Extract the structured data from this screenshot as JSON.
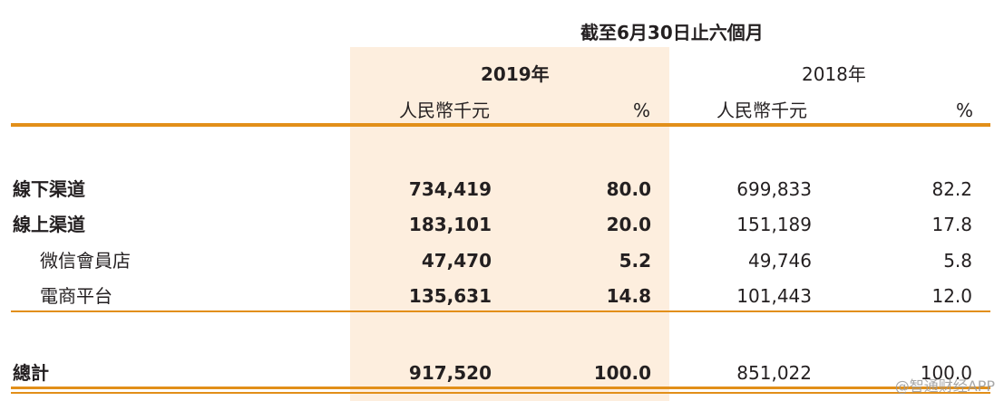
{
  "header": {
    "period": "截至6月30日止六個月",
    "year_2019": "2019年",
    "year_2018": "2018年",
    "unit": "人民幣千元",
    "pct": "%"
  },
  "rows": [
    {
      "label": "線下渠道",
      "v2019": "734,419",
      "p2019": "80.0",
      "v2018": "699,833",
      "p2018": "82.2"
    },
    {
      "label": "線上渠道",
      "v2019": "183,101",
      "p2019": "20.0",
      "v2018": "151,189",
      "p2018": "17.8"
    },
    {
      "label": "微信會員店",
      "v2019": "47,470",
      "p2019": "5.2",
      "v2018": "49,746",
      "p2018": "5.8"
    },
    {
      "label": "電商平台",
      "v2019": "135,631",
      "p2019": "14.8",
      "v2018": "101,443",
      "p2018": "12.0"
    }
  ],
  "total": {
    "label": "總計",
    "v2019": "917,520",
    "p2019": "100.0",
    "v2018": "851,022",
    "p2018": "100.0"
  },
  "watermark": "@智通财经APP",
  "colors": {
    "rule": "#e28f19",
    "highlight": "#fdeede"
  }
}
